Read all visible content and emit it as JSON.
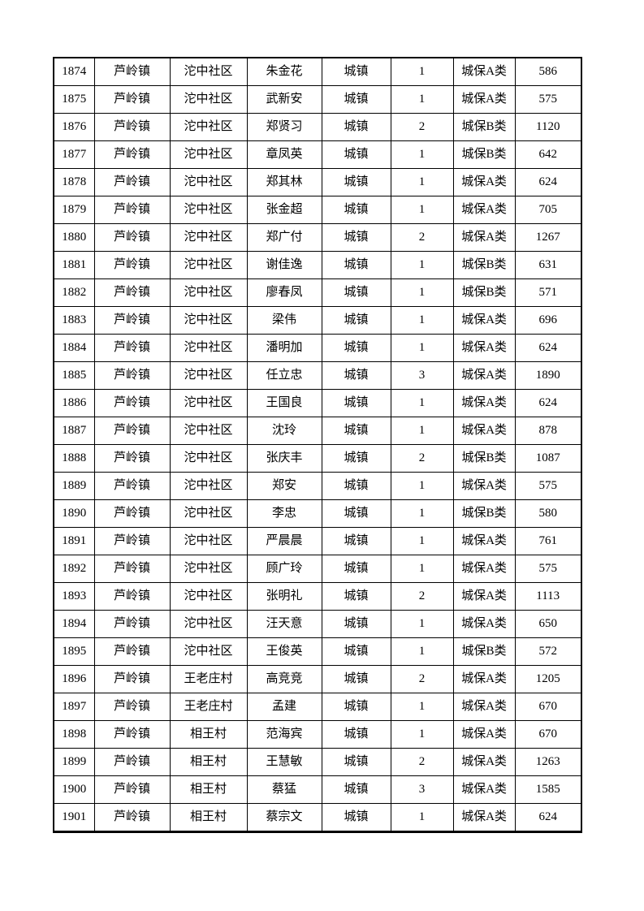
{
  "colors": {
    "border": "#000000",
    "text": "#000000",
    "background": "#ffffff"
  },
  "rows": [
    {
      "no": "1874",
      "town": "芦岭镇",
      "community": "沱中社区",
      "name": "朱金花",
      "type": "城镇",
      "count": "1",
      "category": "城保A类",
      "amount": "586"
    },
    {
      "no": "1875",
      "town": "芦岭镇",
      "community": "沱中社区",
      "name": "武新安",
      "type": "城镇",
      "count": "1",
      "category": "城保A类",
      "amount": "575"
    },
    {
      "no": "1876",
      "town": "芦岭镇",
      "community": "沱中社区",
      "name": "郑贤习",
      "type": "城镇",
      "count": "2",
      "category": "城保B类",
      "amount": "1120"
    },
    {
      "no": "1877",
      "town": "芦岭镇",
      "community": "沱中社区",
      "name": "章凤英",
      "type": "城镇",
      "count": "1",
      "category": "城保B类",
      "amount": "642"
    },
    {
      "no": "1878",
      "town": "芦岭镇",
      "community": "沱中社区",
      "name": "郑其林",
      "type": "城镇",
      "count": "1",
      "category": "城保A类",
      "amount": "624"
    },
    {
      "no": "1879",
      "town": "芦岭镇",
      "community": "沱中社区",
      "name": "张金超",
      "type": "城镇",
      "count": "1",
      "category": "城保A类",
      "amount": "705"
    },
    {
      "no": "1880",
      "town": "芦岭镇",
      "community": "沱中社区",
      "name": "郑广付",
      "type": "城镇",
      "count": "2",
      "category": "城保A类",
      "amount": "1267"
    },
    {
      "no": "1881",
      "town": "芦岭镇",
      "community": "沱中社区",
      "name": "谢佳逸",
      "type": "城镇",
      "count": "1",
      "category": "城保B类",
      "amount": "631"
    },
    {
      "no": "1882",
      "town": "芦岭镇",
      "community": "沱中社区",
      "name": "廖春凤",
      "type": "城镇",
      "count": "1",
      "category": "城保B类",
      "amount": "571"
    },
    {
      "no": "1883",
      "town": "芦岭镇",
      "community": "沱中社区",
      "name": "梁伟",
      "type": "城镇",
      "count": "1",
      "category": "城保A类",
      "amount": "696"
    },
    {
      "no": "1884",
      "town": "芦岭镇",
      "community": "沱中社区",
      "name": "潘明加",
      "type": "城镇",
      "count": "1",
      "category": "城保A类",
      "amount": "624"
    },
    {
      "no": "1885",
      "town": "芦岭镇",
      "community": "沱中社区",
      "name": "任立忠",
      "type": "城镇",
      "count": "3",
      "category": "城保A类",
      "amount": "1890"
    },
    {
      "no": "1886",
      "town": "芦岭镇",
      "community": "沱中社区",
      "name": "王国良",
      "type": "城镇",
      "count": "1",
      "category": "城保A类",
      "amount": "624"
    },
    {
      "no": "1887",
      "town": "芦岭镇",
      "community": "沱中社区",
      "name": "沈玲",
      "type": "城镇",
      "count": "1",
      "category": "城保A类",
      "amount": "878"
    },
    {
      "no": "1888",
      "town": "芦岭镇",
      "community": "沱中社区",
      "name": "张庆丰",
      "type": "城镇",
      "count": "2",
      "category": "城保B类",
      "amount": "1087"
    },
    {
      "no": "1889",
      "town": "芦岭镇",
      "community": "沱中社区",
      "name": "郑安",
      "type": "城镇",
      "count": "1",
      "category": "城保A类",
      "amount": "575"
    },
    {
      "no": "1890",
      "town": "芦岭镇",
      "community": "沱中社区",
      "name": "李忠",
      "type": "城镇",
      "count": "1",
      "category": "城保B类",
      "amount": "580"
    },
    {
      "no": "1891",
      "town": "芦岭镇",
      "community": "沱中社区",
      "name": "严晨晨",
      "type": "城镇",
      "count": "1",
      "category": "城保A类",
      "amount": "761"
    },
    {
      "no": "1892",
      "town": "芦岭镇",
      "community": "沱中社区",
      "name": "顾广玲",
      "type": "城镇",
      "count": "1",
      "category": "城保A类",
      "amount": "575"
    },
    {
      "no": "1893",
      "town": "芦岭镇",
      "community": "沱中社区",
      "name": "张明礼",
      "type": "城镇",
      "count": "2",
      "category": "城保A类",
      "amount": "1113"
    },
    {
      "no": "1894",
      "town": "芦岭镇",
      "community": "沱中社区",
      "name": "汪天意",
      "type": "城镇",
      "count": "1",
      "category": "城保A类",
      "amount": "650"
    },
    {
      "no": "1895",
      "town": "芦岭镇",
      "community": "沱中社区",
      "name": "王俊英",
      "type": "城镇",
      "count": "1",
      "category": "城保B类",
      "amount": "572"
    },
    {
      "no": "1896",
      "town": "芦岭镇",
      "community": "王老庄村",
      "name": "高竞竞",
      "type": "城镇",
      "count": "2",
      "category": "城保A类",
      "amount": "1205"
    },
    {
      "no": "1897",
      "town": "芦岭镇",
      "community": "王老庄村",
      "name": "孟建",
      "type": "城镇",
      "count": "1",
      "category": "城保A类",
      "amount": "670"
    },
    {
      "no": "1898",
      "town": "芦岭镇",
      "community": "相王村",
      "name": "范海宾",
      "type": "城镇",
      "count": "1",
      "category": "城保A类",
      "amount": "670"
    },
    {
      "no": "1899",
      "town": "芦岭镇",
      "community": "相王村",
      "name": "王慧敏",
      "type": "城镇",
      "count": "2",
      "category": "城保A类",
      "amount": "1263"
    },
    {
      "no": "1900",
      "town": "芦岭镇",
      "community": "相王村",
      "name": "蔡猛",
      "type": "城镇",
      "count": "3",
      "category": "城保A类",
      "amount": "1585"
    },
    {
      "no": "1901",
      "town": "芦岭镇",
      "community": "相王村",
      "name": "蔡宗文",
      "type": "城镇",
      "count": "1",
      "category": "城保A类",
      "amount": "624"
    }
  ]
}
